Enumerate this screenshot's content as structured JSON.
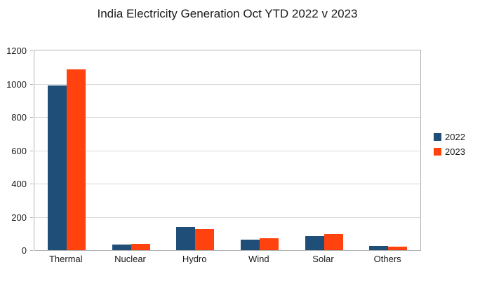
{
  "title": "India Electricity Generation Oct YTD 2022 v 2023",
  "chart_data": {
    "type": "bar",
    "title": "India Electricity Generation Oct YTD 2022 v 2023",
    "categories": [
      "Thermal",
      "Nuclear",
      "Hydro",
      "Wind",
      "Solar",
      "Others"
    ],
    "series": [
      {
        "name": "2022",
        "color": "#1F4E79",
        "values": [
          990,
          35,
          140,
          65,
          85,
          25
        ]
      },
      {
        "name": "2023",
        "color": "#FF420E",
        "values": [
          1085,
          40,
          125,
          70,
          95,
          20
        ]
      }
    ],
    "xlabel": "",
    "ylabel": "",
    "ylim": [
      0,
      1200
    ],
    "yticks": [
      0,
      200,
      400,
      600,
      800,
      1000,
      1200
    ],
    "grid": true,
    "legend_position": "right"
  }
}
